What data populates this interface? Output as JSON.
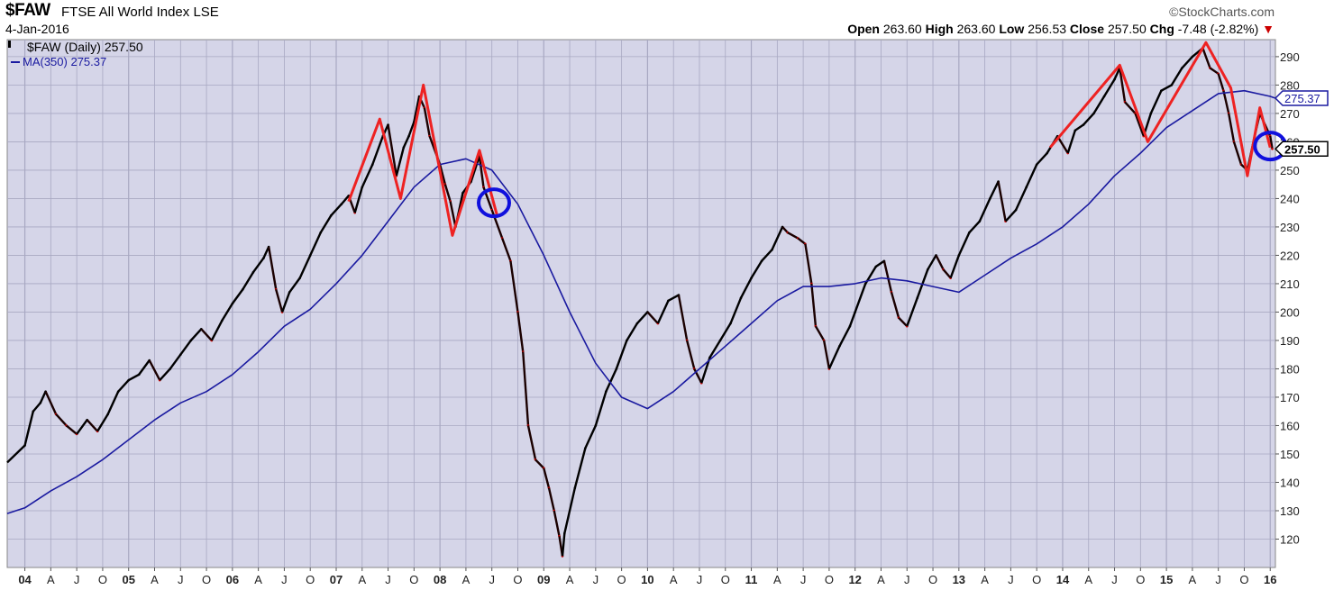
{
  "header": {
    "symbol": "$FAW",
    "name": "FTSE All World Index",
    "exchange": "LSE",
    "date": "4-Jan-2016",
    "brand": "©StockCharts.com",
    "open_label": "Open",
    "open": "263.60",
    "high_label": "High",
    "high": "263.60",
    "low_label": "Low",
    "low": "256.53",
    "close_label": "Close",
    "close": "257.50",
    "chg_label": "Chg",
    "chg": "-7.48 (-2.82%)"
  },
  "legend": {
    "price_label": "$FAW (Daily) 257.50",
    "ma_label": "MA(350) 275.37"
  },
  "colors": {
    "plot_bg": "#d5d5e8",
    "grid": "#a8a8c2",
    "price": "#000000",
    "down_price": "#cc0000",
    "ma": "#1a1aa0",
    "annotation_line": "#ee2222",
    "annotation_circle": "#1010dd"
  },
  "chart_data": {
    "type": "line",
    "title": "$FAW FTSE All World Index LSE",
    "ylim": [
      110,
      296
    ],
    "y_ticks": [
      120,
      130,
      140,
      150,
      160,
      170,
      180,
      190,
      200,
      210,
      220,
      230,
      240,
      250,
      260,
      270,
      280,
      290
    ],
    "x_range": [
      2003.83,
      2016.05
    ],
    "x_ticks": [
      {
        "label": "04",
        "x": 2004.0,
        "major": true
      },
      {
        "label": "A",
        "x": 2004.25
      },
      {
        "label": "J",
        "x": 2004.5
      },
      {
        "label": "O",
        "x": 2004.75
      },
      {
        "label": "05",
        "x": 2005.0,
        "major": true
      },
      {
        "label": "A",
        "x": 2005.25
      },
      {
        "label": "J",
        "x": 2005.5
      },
      {
        "label": "O",
        "x": 2005.75
      },
      {
        "label": "06",
        "x": 2006.0,
        "major": true
      },
      {
        "label": "A",
        "x": 2006.25
      },
      {
        "label": "J",
        "x": 2006.5
      },
      {
        "label": "O",
        "x": 2006.75
      },
      {
        "label": "07",
        "x": 2007.0,
        "major": true
      },
      {
        "label": "A",
        "x": 2007.25
      },
      {
        "label": "J",
        "x": 2007.5
      },
      {
        "label": "O",
        "x": 2007.75
      },
      {
        "label": "08",
        "x": 2008.0,
        "major": true
      },
      {
        "label": "A",
        "x": 2008.25
      },
      {
        "label": "J",
        "x": 2008.5
      },
      {
        "label": "O",
        "x": 2008.75
      },
      {
        "label": "09",
        "x": 2009.0,
        "major": true
      },
      {
        "label": "A",
        "x": 2009.25
      },
      {
        "label": "J",
        "x": 2009.5
      },
      {
        "label": "O",
        "x": 2009.75
      },
      {
        "label": "10",
        "x": 2010.0,
        "major": true
      },
      {
        "label": "A",
        "x": 2010.25
      },
      {
        "label": "J",
        "x": 2010.5
      },
      {
        "label": "O",
        "x": 2010.75
      },
      {
        "label": "11",
        "x": 2011.0,
        "major": true
      },
      {
        "label": "A",
        "x": 2011.25
      },
      {
        "label": "J",
        "x": 2011.5
      },
      {
        "label": "O",
        "x": 2011.75
      },
      {
        "label": "12",
        "x": 2012.0,
        "major": true
      },
      {
        "label": "A",
        "x": 2012.25
      },
      {
        "label": "J",
        "x": 2012.5
      },
      {
        "label": "O",
        "x": 2012.75
      },
      {
        "label": "13",
        "x": 2013.0,
        "major": true
      },
      {
        "label": "A",
        "x": 2013.25
      },
      {
        "label": "J",
        "x": 2013.5
      },
      {
        "label": "O",
        "x": 2013.75
      },
      {
        "label": "14",
        "x": 2014.0,
        "major": true
      },
      {
        "label": "A",
        "x": 2014.25
      },
      {
        "label": "J",
        "x": 2014.5
      },
      {
        "label": "O",
        "x": 2014.75
      },
      {
        "label": "15",
        "x": 2015.0,
        "major": true
      },
      {
        "label": "A",
        "x": 2015.25
      },
      {
        "label": "J",
        "x": 2015.5
      },
      {
        "label": "O",
        "x": 2015.75
      },
      {
        "label": "16",
        "x": 2016.0,
        "major": true
      }
    ],
    "series": [
      {
        "name": "$FAW (Daily)",
        "style": "price",
        "points": [
          [
            2003.83,
            147
          ],
          [
            2004.0,
            153
          ],
          [
            2004.08,
            165
          ],
          [
            2004.15,
            168
          ],
          [
            2004.2,
            172
          ],
          [
            2004.3,
            164
          ],
          [
            2004.4,
            160
          ],
          [
            2004.5,
            157
          ],
          [
            2004.6,
            162
          ],
          [
            2004.7,
            158
          ],
          [
            2004.8,
            164
          ],
          [
            2004.9,
            172
          ],
          [
            2005.0,
            176
          ],
          [
            2005.1,
            178
          ],
          [
            2005.2,
            183
          ],
          [
            2005.3,
            176
          ],
          [
            2005.4,
            180
          ],
          [
            2005.5,
            185
          ],
          [
            2005.6,
            190
          ],
          [
            2005.7,
            194
          ],
          [
            2005.8,
            190
          ],
          [
            2005.9,
            197
          ],
          [
            2006.0,
            203
          ],
          [
            2006.1,
            208
          ],
          [
            2006.2,
            214
          ],
          [
            2006.3,
            219
          ],
          [
            2006.35,
            223
          ],
          [
            2006.42,
            208
          ],
          [
            2006.48,
            200
          ],
          [
            2006.55,
            207
          ],
          [
            2006.65,
            212
          ],
          [
            2006.75,
            220
          ],
          [
            2006.85,
            228
          ],
          [
            2006.95,
            234
          ],
          [
            2007.05,
            238
          ],
          [
            2007.12,
            241
          ],
          [
            2007.18,
            235
          ],
          [
            2007.25,
            244
          ],
          [
            2007.35,
            252
          ],
          [
            2007.45,
            262
          ],
          [
            2007.5,
            266
          ],
          [
            2007.58,
            248
          ],
          [
            2007.65,
            258
          ],
          [
            2007.7,
            262
          ],
          [
            2007.75,
            267
          ],
          [
            2007.8,
            276
          ],
          [
            2007.85,
            272
          ],
          [
            2007.9,
            262
          ],
          [
            2008.0,
            252
          ],
          [
            2008.05,
            245
          ],
          [
            2008.1,
            239
          ],
          [
            2008.15,
            230
          ],
          [
            2008.22,
            242
          ],
          [
            2008.3,
            246
          ],
          [
            2008.38,
            255
          ],
          [
            2008.42,
            244
          ],
          [
            2008.5,
            236
          ],
          [
            2008.6,
            226
          ],
          [
            2008.68,
            218
          ],
          [
            2008.75,
            200
          ],
          [
            2008.8,
            186
          ],
          [
            2008.85,
            160
          ],
          [
            2008.92,
            148
          ],
          [
            2009.0,
            145
          ],
          [
            2009.05,
            138
          ],
          [
            2009.1,
            130
          ],
          [
            2009.15,
            121
          ],
          [
            2009.18,
            114
          ],
          [
            2009.2,
            122
          ],
          [
            2009.3,
            138
          ],
          [
            2009.4,
            152
          ],
          [
            2009.5,
            160
          ],
          [
            2009.6,
            172
          ],
          [
            2009.7,
            180
          ],
          [
            2009.8,
            190
          ],
          [
            2009.9,
            196
          ],
          [
            2010.0,
            200
          ],
          [
            2010.1,
            196
          ],
          [
            2010.2,
            204
          ],
          [
            2010.3,
            206
          ],
          [
            2010.38,
            190
          ],
          [
            2010.45,
            180
          ],
          [
            2010.52,
            175
          ],
          [
            2010.6,
            184
          ],
          [
            2010.7,
            190
          ],
          [
            2010.8,
            196
          ],
          [
            2010.9,
            205
          ],
          [
            2011.0,
            212
          ],
          [
            2011.1,
            218
          ],
          [
            2011.2,
            222
          ],
          [
            2011.3,
            230
          ],
          [
            2011.35,
            228
          ],
          [
            2011.45,
            226
          ],
          [
            2011.52,
            224
          ],
          [
            2011.58,
            210
          ],
          [
            2011.62,
            195
          ],
          [
            2011.7,
            190
          ],
          [
            2011.75,
            180
          ],
          [
            2011.85,
            188
          ],
          [
            2011.95,
            195
          ],
          [
            2012.0,
            200
          ],
          [
            2012.1,
            210
          ],
          [
            2012.2,
            216
          ],
          [
            2012.28,
            218
          ],
          [
            2012.35,
            207
          ],
          [
            2012.42,
            198
          ],
          [
            2012.5,
            195
          ],
          [
            2012.6,
            205
          ],
          [
            2012.7,
            215
          ],
          [
            2012.78,
            220
          ],
          [
            2012.85,
            215
          ],
          [
            2012.92,
            212
          ],
          [
            2013.0,
            220
          ],
          [
            2013.1,
            228
          ],
          [
            2013.2,
            232
          ],
          [
            2013.3,
            240
          ],
          [
            2013.38,
            246
          ],
          [
            2013.45,
            232
          ],
          [
            2013.55,
            236
          ],
          [
            2013.65,
            244
          ],
          [
            2013.75,
            252
          ],
          [
            2013.85,
            256
          ],
          [
            2013.95,
            262
          ],
          [
            2014.05,
            256
          ],
          [
            2014.12,
            264
          ],
          [
            2014.2,
            266
          ],
          [
            2014.3,
            270
          ],
          [
            2014.4,
            276
          ],
          [
            2014.5,
            282
          ],
          [
            2014.55,
            286
          ],
          [
            2014.6,
            274
          ],
          [
            2014.7,
            270
          ],
          [
            2014.78,
            262
          ],
          [
            2014.85,
            270
          ],
          [
            2014.95,
            278
          ],
          [
            2015.05,
            280
          ],
          [
            2015.15,
            286
          ],
          [
            2015.25,
            290
          ],
          [
            2015.35,
            293
          ],
          [
            2015.42,
            286
          ],
          [
            2015.5,
            284
          ],
          [
            2015.55,
            278
          ],
          [
            2015.6,
            270
          ],
          [
            2015.65,
            260
          ],
          [
            2015.72,
            252
          ],
          [
            2015.78,
            250
          ],
          [
            2015.85,
            262
          ],
          [
            2015.9,
            270
          ],
          [
            2015.95,
            266
          ],
          [
            2016.0,
            262
          ],
          [
            2016.02,
            257.5
          ]
        ]
      },
      {
        "name": "MA(350)",
        "style": "ma",
        "points": [
          [
            2003.83,
            129
          ],
          [
            2004.0,
            131
          ],
          [
            2004.25,
            137
          ],
          [
            2004.5,
            142
          ],
          [
            2004.75,
            148
          ],
          [
            2005.0,
            155
          ],
          [
            2005.25,
            162
          ],
          [
            2005.5,
            168
          ],
          [
            2005.75,
            172
          ],
          [
            2006.0,
            178
          ],
          [
            2006.25,
            186
          ],
          [
            2006.5,
            195
          ],
          [
            2006.75,
            201
          ],
          [
            2007.0,
            210
          ],
          [
            2007.25,
            220
          ],
          [
            2007.5,
            232
          ],
          [
            2007.75,
            244
          ],
          [
            2008.0,
            252
          ],
          [
            2008.25,
            254
          ],
          [
            2008.5,
            250
          ],
          [
            2008.75,
            238
          ],
          [
            2009.0,
            220
          ],
          [
            2009.25,
            200
          ],
          [
            2009.5,
            182
          ],
          [
            2009.75,
            170
          ],
          [
            2010.0,
            166
          ],
          [
            2010.25,
            172
          ],
          [
            2010.5,
            180
          ],
          [
            2010.75,
            188
          ],
          [
            2011.0,
            196
          ],
          [
            2011.25,
            204
          ],
          [
            2011.5,
            209
          ],
          [
            2011.75,
            209
          ],
          [
            2012.0,
            210
          ],
          [
            2012.25,
            212
          ],
          [
            2012.5,
            211
          ],
          [
            2012.75,
            209
          ],
          [
            2013.0,
            207
          ],
          [
            2013.25,
            213
          ],
          [
            2013.5,
            219
          ],
          [
            2013.75,
            224
          ],
          [
            2014.0,
            230
          ],
          [
            2014.25,
            238
          ],
          [
            2014.5,
            248
          ],
          [
            2014.75,
            256
          ],
          [
            2015.0,
            265
          ],
          [
            2015.25,
            271
          ],
          [
            2015.5,
            277
          ],
          [
            2015.75,
            278
          ],
          [
            2016.0,
            276
          ],
          [
            2016.05,
            275.37
          ]
        ]
      },
      {
        "name": "",
        "style": "annotation",
        "points": [
          [
            2007.12,
            239
          ],
          [
            2007.42,
            268
          ],
          [
            2007.62,
            240
          ],
          [
            2007.84,
            280
          ],
          [
            2008.12,
            227
          ],
          [
            2008.38,
            257
          ],
          [
            2008.55,
            234
          ]
        ]
      },
      {
        "name": "",
        "style": "annotation",
        "points": [
          [
            2013.88,
            258
          ],
          [
            2014.55,
            287
          ],
          [
            2014.82,
            260
          ],
          [
            2015.38,
            295
          ],
          [
            2015.62,
            279
          ],
          [
            2015.78,
            248
          ],
          [
            2015.9,
            272
          ],
          [
            2016.0,
            258
          ]
        ]
      }
    ],
    "circles": [
      {
        "x": 2008.52,
        "y": 238.5
      },
      {
        "x": 2016.0,
        "y": 258.5
      }
    ],
    "value_tags": [
      {
        "label": "275.37",
        "value": 275.37,
        "style": "ma"
      },
      {
        "label": "257.50",
        "value": 257.5,
        "style": "price"
      }
    ]
  }
}
